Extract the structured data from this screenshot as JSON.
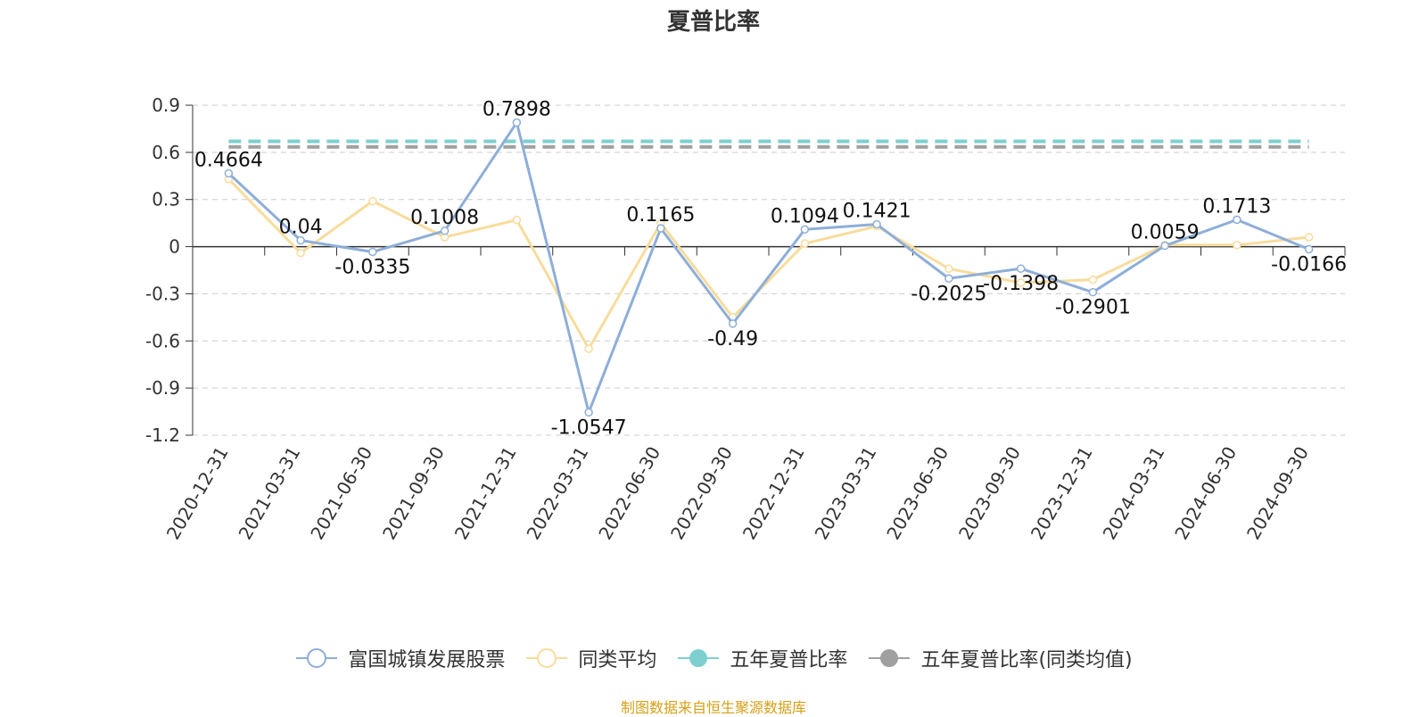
{
  "chart_data": {
    "type": "line",
    "title": "夏普比率",
    "categories": [
      "2020-12-31",
      "2021-03-31",
      "2021-06-30",
      "2021-09-30",
      "2021-12-31",
      "2022-03-31",
      "2022-06-30",
      "2022-09-30",
      "2022-12-31",
      "2023-03-31",
      "2023-06-30",
      "2023-09-30",
      "2023-12-31",
      "2024-03-31",
      "2024-06-30",
      "2024-09-30"
    ],
    "ylim": [
      -1.2,
      0.9
    ],
    "yticks": [
      "0.9",
      "0.6",
      "0.3",
      "0",
      "-0.3",
      "-0.6",
      "-0.9",
      "-1.2"
    ],
    "grid": true,
    "legend_position": "bottom",
    "series": [
      {
        "name": "富国城镇发展股票",
        "color": "#8eaed8",
        "values": [
          0.4664,
          0.04,
          -0.0335,
          0.1008,
          0.7898,
          -1.0547,
          0.1165,
          -0.49,
          0.1094,
          0.1421,
          -0.2025,
          -0.1398,
          -0.2901,
          0.0059,
          0.1713,
          -0.0166
        ],
        "labels": [
          "0.4664",
          "0.04",
          "-0.0335",
          "0.1008",
          "0.7898",
          "-1.0547",
          "0.1165",
          "-0.49",
          "0.1094",
          "0.1421",
          "-0.2025",
          "-0.1398",
          "-0.2901",
          "0.0059",
          "0.1713",
          "-0.0166"
        ]
      },
      {
        "name": "同类平均",
        "color": "#f8dc9c",
        "values": [
          0.43,
          -0.04,
          0.29,
          0.06,
          0.17,
          -0.65,
          0.15,
          -0.45,
          0.02,
          0.13,
          -0.14,
          -0.23,
          -0.21,
          0.01,
          0.01,
          0.06
        ]
      },
      {
        "name": "五年夏普比率",
        "color": "#7ecfcf",
        "value": 0.67
      },
      {
        "name": "五年夏普比率(同类均值)",
        "color": "#a0a0a0",
        "value": 0.635
      }
    ]
  },
  "source": {
    "text": "制图数据来自恒生聚源数据库",
    "color": "#d4a017"
  }
}
